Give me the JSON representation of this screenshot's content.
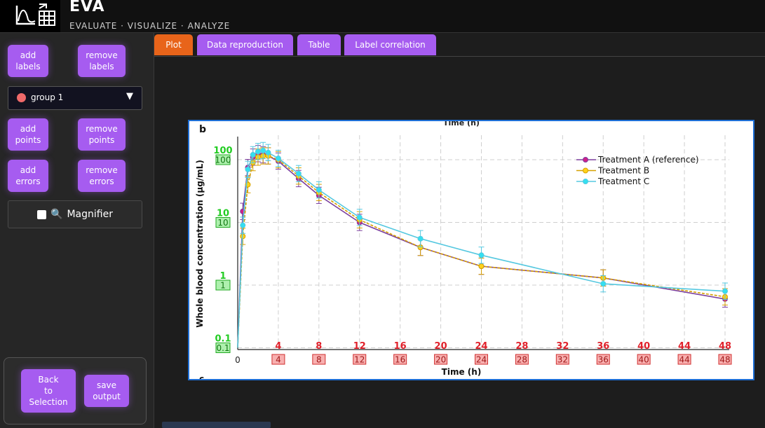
{
  "app": {
    "title": "EVA",
    "subtitle": "EVALUATE · VISUALIZE · ANALYZE"
  },
  "sidebar": {
    "add_labels": "add\nlabels",
    "remove_labels": "remove\nlabels",
    "group_select": "group 1",
    "add_points": "add\npoints",
    "remove_points": "remove\npoints",
    "add_errors": "add\nerrors",
    "remove_errors": "remove\nerrors",
    "magnifier": "Magnifier",
    "back": "Back\nto\nSelection",
    "save": "save\noutput"
  },
  "tabs": [
    "Plot",
    "Data reproduction",
    "Table",
    "Label correlation"
  ],
  "colors": {
    "accent": "#a65cf0",
    "active_tab": "#e8641a",
    "frame": "#1e6fd6",
    "label_red": "#e0202a",
    "label_green": "#22cc22"
  },
  "chart_data": {
    "type": "line",
    "panel_label": "b",
    "top_cut_label": "Time (h)",
    "bottom_cut_label": "c",
    "xlabel": "Time (h)",
    "ylabel": "Whole blood concentration (µg/mL)",
    "yscale": "log",
    "xlim": [
      0,
      48
    ],
    "ylim": [
      0.1,
      200
    ],
    "x_ticks": [
      0,
      4,
      8,
      12,
      16,
      20,
      24,
      28,
      32,
      36,
      40,
      44,
      48
    ],
    "x_tick_labels": [
      "0",
      "4",
      "8",
      "12",
      "16",
      "20",
      "24",
      "28",
      "32",
      "36",
      "40",
      "44",
      "48"
    ],
    "y_ticks": [
      0.1,
      1,
      10,
      100
    ],
    "y_tick_labels": [
      "0.1",
      "1",
      "10",
      "100"
    ],
    "legend_position": "top-right",
    "series": [
      {
        "name": "Treatment A (reference)",
        "color": "#7b3f9e",
        "marker": "#d0208a",
        "x": [
          0,
          0.5,
          1,
          1.5,
          2,
          2.5,
          3,
          4,
          6,
          8,
          12,
          18,
          24,
          36,
          48
        ],
        "y": [
          0.1,
          15,
          75,
          110,
          125,
          120,
          115,
          95,
          50,
          27,
          10,
          4.0,
          2.0,
          1.3,
          0.6
        ]
      },
      {
        "name": "Treatment B",
        "color": "#d6a000",
        "marker": "#ffd21a",
        "x": [
          0,
          0.5,
          1,
          1.5,
          2,
          2.5,
          3,
          4,
          6,
          8,
          12,
          18,
          24,
          36,
          48
        ],
        "y": [
          0.1,
          6,
          40,
          90,
          110,
          115,
          115,
          100,
          55,
          30,
          11,
          4.0,
          2.0,
          1.3,
          0.65
        ]
      },
      {
        "name": "Treatment C",
        "color": "#55c8e0",
        "marker": "#33e0f0",
        "x": [
          0,
          0.5,
          1,
          1.5,
          2,
          2.5,
          3,
          4,
          6,
          8,
          12,
          18,
          24,
          36,
          48
        ],
        "y": [
          0.1,
          9,
          70,
          120,
          135,
          140,
          130,
          105,
          60,
          33,
          12,
          5.5,
          3.0,
          1.05,
          0.8
        ]
      }
    ]
  }
}
